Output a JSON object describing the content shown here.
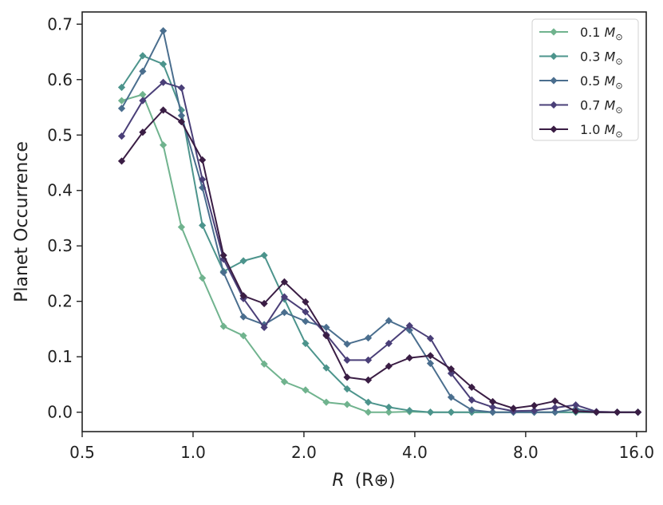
{
  "chart_data": {
    "type": "line",
    "title": "",
    "xlabel_var": "R",
    "xlabel_unit": "(R⊕)",
    "ylabel": "Planet Occurrence",
    "x_scale": "log2",
    "xlim": [
      0.5,
      17.0
    ],
    "ylim": [
      -0.035,
      0.722
    ],
    "x_ticks": [
      0.5,
      1.0,
      2.0,
      4.0,
      8.0,
      16.0
    ],
    "x_tick_labels": [
      "0.5",
      "1.0",
      "2.0",
      "4.0",
      "8.0",
      "16.0"
    ],
    "y_ticks": [
      0.0,
      0.1,
      0.2,
      0.3,
      0.4,
      0.5,
      0.6,
      0.7
    ],
    "y_tick_labels": [
      "0.0",
      "0.1",
      "0.2",
      "0.3",
      "0.4",
      "0.5",
      "0.6",
      "0.7"
    ],
    "grid": false,
    "legend_position": "top-right",
    "marker": "diamond",
    "x": [
      0.64,
      0.73,
      0.83,
      0.93,
      1.06,
      1.21,
      1.37,
      1.56,
      1.77,
      2.02,
      2.3,
      2.62,
      2.99,
      3.4,
      3.87,
      4.41,
      5.02,
      5.71,
      6.51,
      7.41,
      8.44,
      9.61,
      10.94,
      12.45,
      14.18,
      16.14
    ],
    "series": [
      {
        "name": "0.1",
        "unit": "M",
        "unit_sub": "⊙",
        "color": "#70b38e",
        "values": [
          0.562,
          0.573,
          0.482,
          0.334,
          0.242,
          0.155,
          0.138,
          0.087,
          0.055,
          0.04,
          0.018,
          0.014,
          0.0,
          0.0,
          0.001,
          0.0,
          0.0,
          0.0,
          0.0,
          0.0,
          0.0,
          0.0,
          0.0,
          0.0,
          0.0,
          0.0
        ]
      },
      {
        "name": "0.3",
        "unit": "M",
        "unit_sub": "⊙",
        "color": "#4c948c",
        "values": [
          0.586,
          0.643,
          0.628,
          0.545,
          0.337,
          0.254,
          0.273,
          0.283,
          0.204,
          0.124,
          0.08,
          0.042,
          0.018,
          0.009,
          0.003,
          0.0,
          0.0,
          0.0,
          0.0,
          0.0,
          0.0,
          0.0,
          0.0,
          0.0,
          0.0,
          0.0
        ]
      },
      {
        "name": "0.5",
        "unit": "M",
        "unit_sub": "⊙",
        "color": "#4a6e8e",
        "values": [
          0.548,
          0.615,
          0.688,
          0.535,
          0.405,
          0.252,
          0.172,
          0.158,
          0.18,
          0.164,
          0.153,
          0.123,
          0.134,
          0.165,
          0.148,
          0.088,
          0.027,
          0.004,
          0.0,
          0.0,
          0.0,
          0.0,
          0.006,
          0.0,
          0.0,
          0.0
        ]
      },
      {
        "name": "0.7",
        "unit": "M",
        "unit_sub": "⊙",
        "color": "#4a3f78",
        "values": [
          0.498,
          0.562,
          0.595,
          0.585,
          0.42,
          0.276,
          0.205,
          0.153,
          0.208,
          0.181,
          0.14,
          0.094,
          0.094,
          0.124,
          0.156,
          0.133,
          0.07,
          0.022,
          0.009,
          0.002,
          0.003,
          0.008,
          0.013,
          0.001,
          0.0,
          0.0
        ]
      },
      {
        "name": "1.0",
        "unit": "M",
        "unit_sub": "⊙",
        "color": "#3a1d44",
        "values": [
          0.453,
          0.505,
          0.545,
          0.524,
          0.455,
          0.283,
          0.21,
          0.196,
          0.235,
          0.199,
          0.138,
          0.063,
          0.058,
          0.083,
          0.098,
          0.102,
          0.078,
          0.045,
          0.019,
          0.007,
          0.012,
          0.02,
          0.002,
          0.0,
          0.0,
          0.0
        ]
      }
    ]
  }
}
